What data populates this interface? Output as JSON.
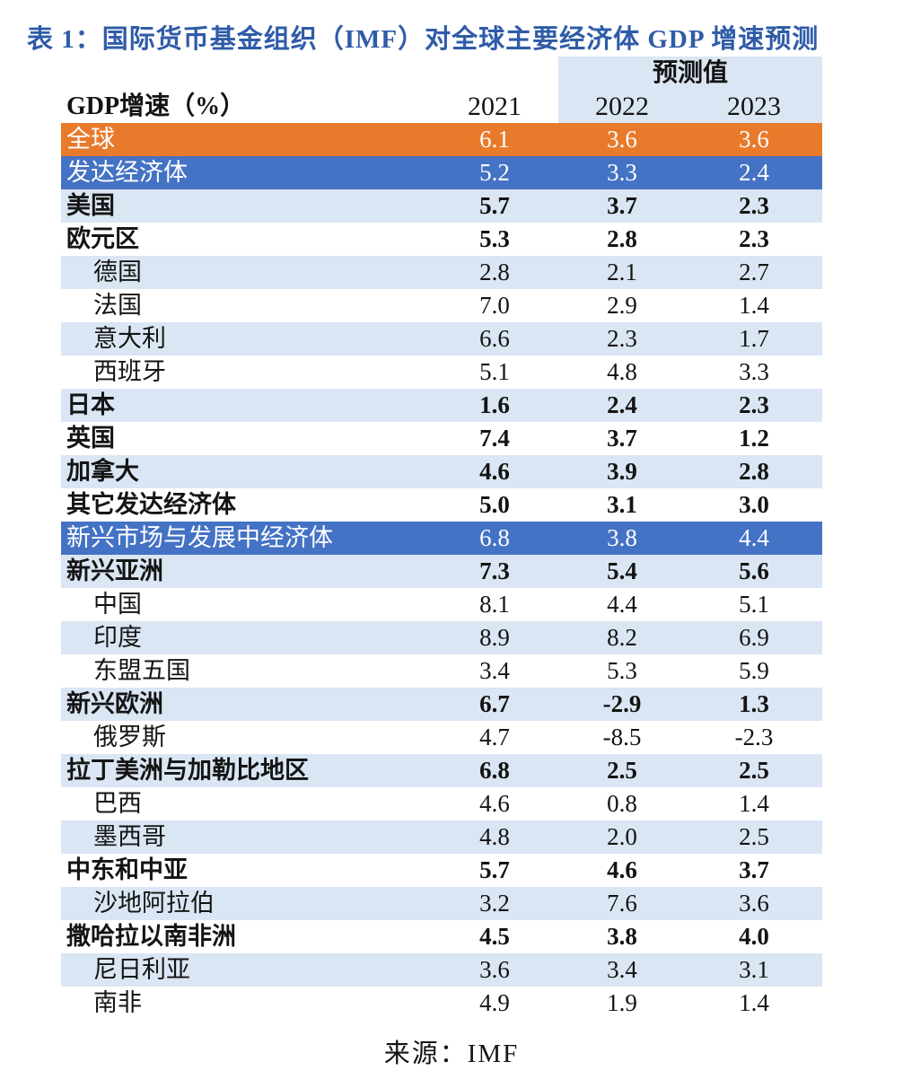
{
  "title": "表 1：国际货币基金组织（IMF）对全球主要经济体 GDP 增速预测",
  "header": {
    "forecast_label": "预测值",
    "columns": [
      "GDP增速（%）",
      "2021",
      "2022",
      "2023"
    ]
  },
  "source": "来源：IMF",
  "colors": {
    "title_blue": "#2F5CA8",
    "orange_row": "#E87A2B",
    "blue_row": "#4472C4",
    "stripe_blue": "#DAE6F3",
    "text": "#141414"
  },
  "chart_data": {
    "type": "table",
    "title": "国际货币基金组织（IMF）对全球主要经济体GDP增速预测",
    "unit_label": "GDP增速（%）",
    "value_columns": [
      "2021",
      "2022",
      "2023"
    ],
    "rows": [
      {
        "label": "全球",
        "values": [
          "6.1",
          "3.6",
          "3.6"
        ],
        "style": "orange",
        "bold": false,
        "indent": false
      },
      {
        "label": "发达经济体",
        "values": [
          "5.2",
          "3.3",
          "2.4"
        ],
        "style": "blue",
        "bold": false,
        "indent": false
      },
      {
        "label": "美国",
        "values": [
          "5.7",
          "3.7",
          "2.3"
        ],
        "style": "stripe",
        "bold": true,
        "indent": false
      },
      {
        "label": "欧元区",
        "values": [
          "5.3",
          "2.8",
          "2.3"
        ],
        "style": "white",
        "bold": true,
        "indent": false
      },
      {
        "label": "德国",
        "values": [
          "2.8",
          "2.1",
          "2.7"
        ],
        "style": "stripe",
        "bold": false,
        "indent": true
      },
      {
        "label": "法国",
        "values": [
          "7.0",
          "2.9",
          "1.4"
        ],
        "style": "white",
        "bold": false,
        "indent": true
      },
      {
        "label": "意大利",
        "values": [
          "6.6",
          "2.3",
          "1.7"
        ],
        "style": "stripe",
        "bold": false,
        "indent": true
      },
      {
        "label": "西班牙",
        "values": [
          "5.1",
          "4.8",
          "3.3"
        ],
        "style": "white",
        "bold": false,
        "indent": true
      },
      {
        "label": "日本",
        "values": [
          "1.6",
          "2.4",
          "2.3"
        ],
        "style": "stripe",
        "bold": true,
        "indent": false
      },
      {
        "label": "英国",
        "values": [
          "7.4",
          "3.7",
          "1.2"
        ],
        "style": "white",
        "bold": true,
        "indent": false
      },
      {
        "label": "加拿大",
        "values": [
          "4.6",
          "3.9",
          "2.8"
        ],
        "style": "stripe",
        "bold": true,
        "indent": false
      },
      {
        "label": "其它发达经济体",
        "values": [
          "5.0",
          "3.1",
          "3.0"
        ],
        "style": "white",
        "bold": true,
        "indent": false
      },
      {
        "label": "新兴市场与发展中经济体",
        "values": [
          "6.8",
          "3.8",
          "4.4"
        ],
        "style": "blue",
        "bold": false,
        "indent": false
      },
      {
        "label": "新兴亚洲",
        "values": [
          "7.3",
          "5.4",
          "5.6"
        ],
        "style": "stripe",
        "bold": true,
        "indent": false
      },
      {
        "label": "中国",
        "values": [
          "8.1",
          "4.4",
          "5.1"
        ],
        "style": "white",
        "bold": false,
        "indent": true
      },
      {
        "label": "印度",
        "values": [
          "8.9",
          "8.2",
          "6.9"
        ],
        "style": "stripe",
        "bold": false,
        "indent": true
      },
      {
        "label": "东盟五国",
        "values": [
          "3.4",
          "5.3",
          "5.9"
        ],
        "style": "white",
        "bold": false,
        "indent": true
      },
      {
        "label": "新兴欧洲",
        "values": [
          "6.7",
          "-2.9",
          "1.3"
        ],
        "style": "stripe",
        "bold": true,
        "indent": false
      },
      {
        "label": "俄罗斯",
        "values": [
          "4.7",
          "-8.5",
          "-2.3"
        ],
        "style": "white",
        "bold": false,
        "indent": true
      },
      {
        "label": "拉丁美洲与加勒比地区",
        "values": [
          "6.8",
          "2.5",
          "2.5"
        ],
        "style": "stripe",
        "bold": true,
        "indent": false
      },
      {
        "label": "巴西",
        "values": [
          "4.6",
          "0.8",
          "1.4"
        ],
        "style": "white",
        "bold": false,
        "indent": true
      },
      {
        "label": "墨西哥",
        "values": [
          "4.8",
          "2.0",
          "2.5"
        ],
        "style": "stripe",
        "bold": false,
        "indent": true
      },
      {
        "label": "中东和中亚",
        "values": [
          "5.7",
          "4.6",
          "3.7"
        ],
        "style": "white",
        "bold": true,
        "indent": false
      },
      {
        "label": "沙地阿拉伯",
        "values": [
          "3.2",
          "7.6",
          "3.6"
        ],
        "style": "stripe",
        "bold": false,
        "indent": true
      },
      {
        "label": "撒哈拉以南非洲",
        "values": [
          "4.5",
          "3.8",
          "4.0"
        ],
        "style": "white",
        "bold": true,
        "indent": false
      },
      {
        "label": "尼日利亚",
        "values": [
          "3.6",
          "3.4",
          "3.1"
        ],
        "style": "stripe",
        "bold": false,
        "indent": true
      },
      {
        "label": "南非",
        "values": [
          "4.9",
          "1.9",
          "1.4"
        ],
        "style": "white",
        "bold": false,
        "indent": true
      }
    ]
  }
}
